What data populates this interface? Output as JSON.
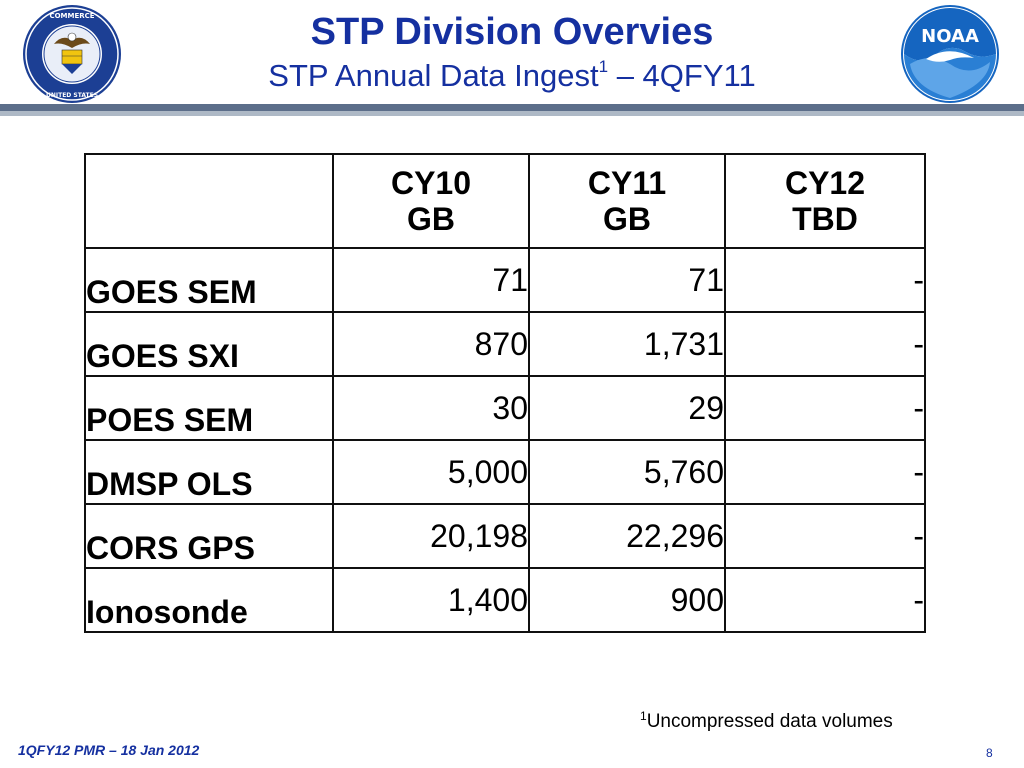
{
  "header": {
    "title": "STP Division Overvies",
    "subtitle_main": "STP Annual Data Ingest",
    "subtitle_sup": "1",
    "subtitle_tail": " – 4QFY11"
  },
  "logos": {
    "left": "Department of Commerce seal",
    "left_text": "DEPARTMENT OF COMMERCE · UNITED STATES OF AMERICA",
    "right": "NOAA logo",
    "right_text": "NOAA"
  },
  "table": {
    "columns": [
      {
        "line1": "CY10",
        "line2": "GB"
      },
      {
        "line1": "CY11",
        "line2": "GB"
      },
      {
        "line1": "CY12",
        "line2": "TBD"
      }
    ],
    "rows": [
      {
        "label": "GOES  SEM",
        "values": [
          "71",
          "71",
          "-"
        ]
      },
      {
        "label": "GOES SXI",
        "values": [
          "870",
          "1,731",
          "-"
        ]
      },
      {
        "label": "POES  SEM",
        "values": [
          "30",
          "29",
          "-"
        ]
      },
      {
        "label": "DMSP  OLS",
        "values": [
          "5,000",
          "5,760",
          "-"
        ]
      },
      {
        "label": "CORS  GPS",
        "values": [
          "20,198",
          "22,296",
          "-"
        ]
      },
      {
        "label": "Ionosonde",
        "values": [
          "1,400",
          "900",
          "-"
        ]
      }
    ]
  },
  "footnote": {
    "sup": "1",
    "text": "Uncompressed data volumes"
  },
  "footer": {
    "left": "1QFY12 PMR – 18 Jan 2012",
    "page": "8"
  },
  "colors": {
    "title": "#1530a0",
    "rule_dark": "#5c6e8a",
    "rule_light": "#aeb9c6",
    "noaa_blue": "#1565c0"
  }
}
